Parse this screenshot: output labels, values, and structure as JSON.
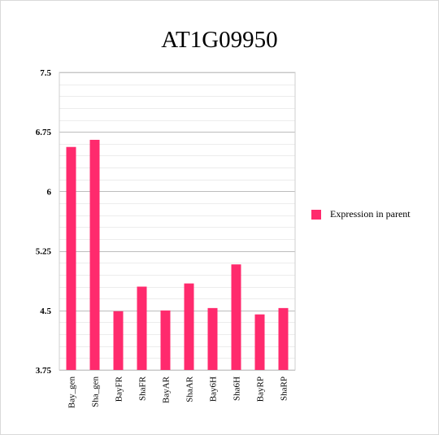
{
  "chart_data": {
    "type": "bar",
    "title": "AT1G09950",
    "xlabel": "",
    "ylabel": "",
    "categories": [
      "Bay_gen",
      "Sha_gen",
      "BayFR",
      "ShaFR",
      "BayAR",
      "ShaAR",
      "Bay6H",
      "Sha6H",
      "BayRP",
      "ShaRP"
    ],
    "series": [
      {
        "name": "Expression in parent",
        "color": "#ff2a6d",
        "values": [
          6.56,
          6.65,
          4.49,
          4.8,
          4.5,
          4.84,
          4.53,
          5.08,
          4.45,
          4.53
        ]
      }
    ],
    "ylim": [
      3.75,
      7.5
    ],
    "yticks": [
      "7.5",
      "6.75",
      "6",
      "5.25",
      "4.5",
      "3.75"
    ],
    "grid": true,
    "legend_position": "right"
  }
}
